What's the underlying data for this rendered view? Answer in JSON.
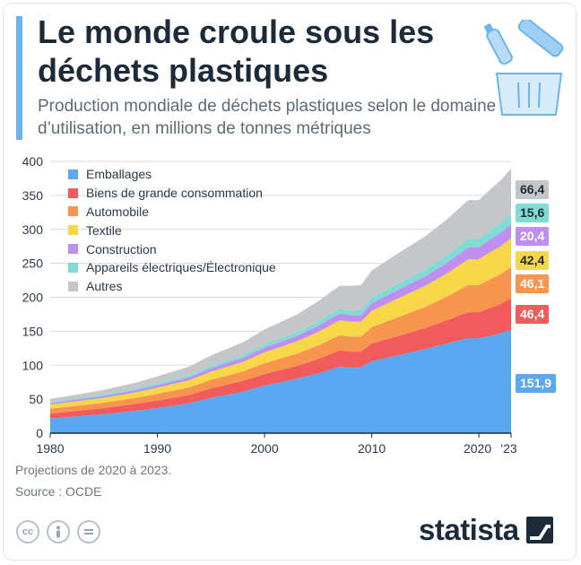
{
  "header": {
    "title": "Le monde croule sous les déchets plastiques",
    "subtitle": "Production mondiale de déchets plastiques selon le domaine d’utilisation, en millions de tonnes métriques"
  },
  "footer": {
    "note": "Projections de 2020 à 2023.",
    "source": "Source : OCDE",
    "brand": "statista",
    "license_icons": [
      "cc-icon",
      "person-icon",
      "equals-icon"
    ]
  },
  "colors": {
    "accent": "#6cb4ee",
    "text": "#1b2b3a",
    "grid": "#d6dce2"
  },
  "chart_data": {
    "type": "area",
    "stacked": true,
    "x_ticks": [
      "1980",
      "1990",
      "2000",
      "2010",
      "2020",
      "’23"
    ],
    "ylim": [
      0,
      400
    ],
    "y_ticks": [
      0,
      50,
      100,
      150,
      200,
      250,
      300,
      350,
      400
    ],
    "grid": true,
    "legend_position": "top-left",
    "x": [
      1980,
      1982,
      1985,
      1988,
      1990,
      1993,
      1995,
      1998,
      2000,
      2003,
      2005,
      2007,
      2008,
      2009,
      2010,
      2012,
      2015,
      2017,
      2019,
      2020,
      2021,
      2022,
      2023
    ],
    "series": [
      {
        "name": "Emballages",
        "color": "#5aa8f2",
        "values": [
          22,
          24,
          28,
          33,
          37,
          44,
          52,
          61,
          70,
          80,
          88,
          98,
          96,
          97,
          106,
          113,
          124,
          132,
          140,
          140,
          143,
          147,
          151.9
        ]
      },
      {
        "name": "Biens de grande consommation",
        "color": "#f25b5b",
        "values": [
          7,
          8,
          9,
          10,
          11,
          12.5,
          14,
          16,
          17,
          19,
          21,
          24,
          24,
          23,
          26,
          28,
          31,
          34,
          38,
          38,
          41,
          43,
          46.4
        ]
      },
      {
        "name": "Automobile",
        "color": "#f7954e",
        "values": [
          7,
          7.5,
          8,
          9,
          10,
          11,
          12.5,
          14,
          16,
          18,
          20,
          22,
          22,
          22,
          24,
          27,
          31,
          35,
          40,
          40,
          42,
          44,
          46.1
        ]
      },
      {
        "name": "Textile",
        "color": "#f7d648",
        "values": [
          6,
          6.5,
          7,
          8,
          9,
          10.5,
          12,
          14,
          16,
          18,
          20,
          22,
          22,
          22,
          24,
          27,
          31,
          34,
          38,
          38,
          40,
          41,
          42.4
        ]
      },
      {
        "name": "Construction",
        "color": "#c08df0",
        "values": [
          2,
          2.3,
          2.7,
          3.2,
          3.6,
          4.2,
          5,
          6,
          7,
          8,
          9,
          10,
          10,
          10,
          11.5,
          12.5,
          14,
          15.5,
          17.5,
          17.5,
          18.5,
          19.5,
          20.4
        ]
      },
      {
        "name": "Appareils électriques/Électronique",
        "color": "#7fdbd4",
        "values": [
          1.5,
          1.7,
          2,
          2.3,
          2.6,
          3,
          3.5,
          4,
          4.8,
          5.5,
          6.2,
          7,
          7,
          7,
          8,
          8.8,
          10,
          11,
          12.5,
          12.5,
          13.5,
          14.5,
          15.6
        ]
      },
      {
        "name": "Autres",
        "color": "#c4c7ca",
        "values": [
          5,
          5.5,
          7,
          9,
          10.5,
          13,
          15.5,
          19,
          22,
          26,
          30,
          34,
          36,
          37,
          40,
          44,
          49,
          53,
          57,
          57,
          60,
          63,
          66.4
        ]
      }
    ],
    "end_labels": [
      {
        "series": "Autres",
        "text": "66,4"
      },
      {
        "series": "Appareils électriques/Électronique",
        "text": "15,6"
      },
      {
        "series": "Construction",
        "text": "20,4"
      },
      {
        "series": "Textile",
        "text": "42,4"
      },
      {
        "series": "Automobile",
        "text": "46,1"
      },
      {
        "series": "Biens de grande consommation",
        "text": "46,4"
      },
      {
        "series": "Emballages",
        "text": "151,9"
      }
    ]
  }
}
